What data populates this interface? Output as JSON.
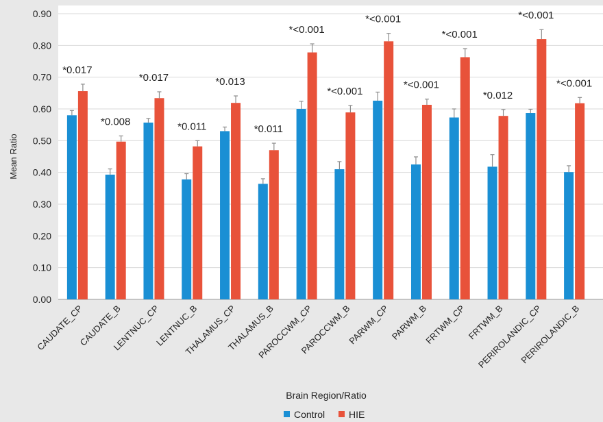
{
  "chart_data": {
    "type": "bar",
    "title": "",
    "xlabel": "Brain Region/Ratio",
    "ylabel": "Mean Ratio",
    "ylim": [
      0,
      0.9
    ],
    "yticks": [
      "0.00",
      "0.10",
      "0.20",
      "0.30",
      "0.40",
      "0.50",
      "0.60",
      "0.70",
      "0.80",
      "0.90"
    ],
    "grid": "horizontal",
    "legend_position": "bottom",
    "categories": [
      "CAUDATE_CP",
      "CAUDATE_B",
      "LENTNUC_CP",
      "LENTNUC_B",
      "THALAMUS_CP",
      "THALAMUS_B",
      "PAROCCWM_CP",
      "PAROCCWM_B",
      "PARWM_CP",
      "PARWM_B",
      "FRTWM_CP",
      "FRTWM_B",
      "PERIROLANDIC_CP",
      "PERIROLANDIC_B"
    ],
    "series": [
      {
        "name": "Control",
        "color": "#1a8fd4",
        "values": [
          0.58,
          0.393,
          0.557,
          0.378,
          0.53,
          0.364,
          0.6,
          0.41,
          0.626,
          0.425,
          0.573,
          0.418,
          0.587,
          0.401
        ],
        "errors": [
          0.015,
          0.018,
          0.013,
          0.018,
          0.013,
          0.016,
          0.024,
          0.024,
          0.027,
          0.024,
          0.027,
          0.038,
          0.012,
          0.02
        ]
      },
      {
        "name": "HIE",
        "color": "#e8523a",
        "values": [
          0.656,
          0.497,
          0.634,
          0.482,
          0.619,
          0.47,
          0.778,
          0.589,
          0.813,
          0.613,
          0.763,
          0.578,
          0.82,
          0.618
        ],
        "errors": [
          0.022,
          0.018,
          0.02,
          0.018,
          0.022,
          0.022,
          0.027,
          0.022,
          0.025,
          0.018,
          0.027,
          0.02,
          0.03,
          0.018
        ]
      }
    ],
    "annotations": [
      "*0.017",
      "*0.008",
      "*0.017",
      "*0.011",
      "*0.013",
      "*0.011",
      "*<0.001",
      "*<0.001",
      "*<0.001",
      "*<0.001",
      "*<0.001",
      "*0.012",
      "*<0.001",
      "*<0.001"
    ]
  }
}
